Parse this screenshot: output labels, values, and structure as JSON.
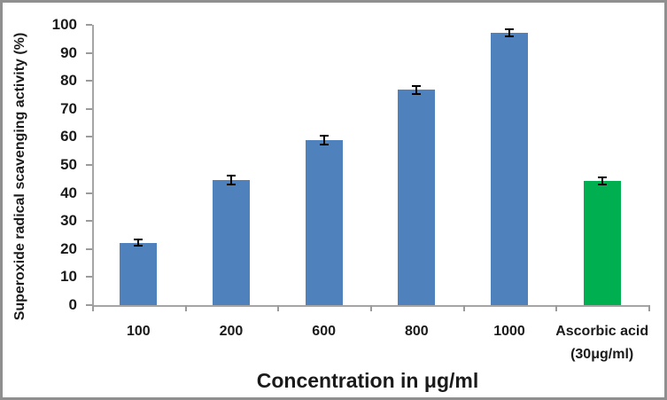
{
  "frame": {
    "background": "#ffffff",
    "border_color": "#8f8f8f"
  },
  "chart_data": {
    "type": "bar",
    "title": "",
    "xlabel": "Concentration in μg/ml",
    "ylabel": "Superoxide radical scavenging activity (%)",
    "ylim": [
      0,
      100
    ],
    "yticks": [
      0,
      10,
      20,
      30,
      40,
      50,
      60,
      70,
      80,
      90,
      100
    ],
    "grid": false,
    "legend": "none",
    "categories": [
      "100",
      "200",
      "600",
      "800",
      "1000",
      "Ascorbic acid\n(30μg/ml)"
    ],
    "values": [
      22.3,
      44.6,
      58.9,
      76.8,
      97.1,
      44.3
    ],
    "errors": [
      1.0,
      1.5,
      1.5,
      1.5,
      1.3,
      1.2
    ],
    "bar_colors": [
      "#4f81bd",
      "#4f81bd",
      "#4f81bd",
      "#4f81bd",
      "#4f81bd",
      "#00b050"
    ],
    "error_bar_color": "#000000",
    "axis_color": "#a5a5a5",
    "tick_color": "#9b9b9b",
    "text_color": "#1a1a1a"
  }
}
